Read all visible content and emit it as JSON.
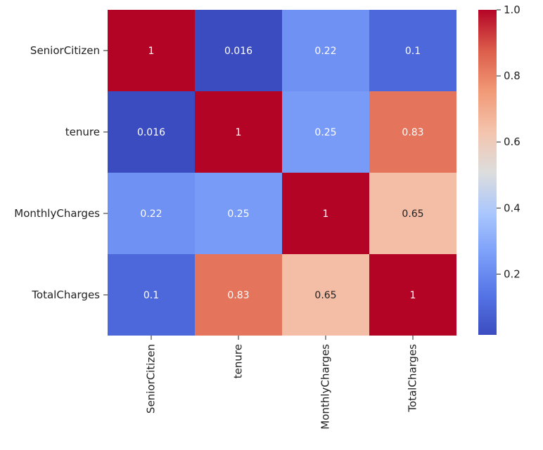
{
  "chart_data": {
    "type": "heatmap",
    "title": "",
    "xlabel": "",
    "ylabel": "",
    "row_labels": [
      "SeniorCitizen",
      "tenure",
      "MonthlyCharges",
      "TotalCharges"
    ],
    "column_labels": [
      "SeniorCitizen",
      "tenure",
      "MonthlyCharges",
      "TotalCharges"
    ],
    "values": [
      [
        1,
        0.016,
        0.22,
        0.1
      ],
      [
        0.016,
        1,
        0.25,
        0.83
      ],
      [
        0.22,
        0.25,
        1,
        0.65
      ],
      [
        0.1,
        0.83,
        0.65,
        1
      ]
    ],
    "cell_labels": [
      [
        "1",
        "0.016",
        "0.22",
        "0.1"
      ],
      [
        "0.016",
        "1",
        "0.25",
        "0.83"
      ],
      [
        "0.22",
        "0.25",
        "1",
        "0.65"
      ],
      [
        "0.1",
        "0.83",
        "0.65",
        "1"
      ]
    ],
    "colorbar": {
      "min": 0.016,
      "max": 1.0,
      "ticks": [
        0.2,
        0.4,
        0.6,
        0.8,
        1.0
      ],
      "tick_labels": [
        "0.2",
        "0.4",
        "0.6",
        "0.8",
        "1.0"
      ]
    },
    "colormap": "coolwarm",
    "colors": {
      "low": "#3b4cc0",
      "mid": "#dddddd",
      "high": "#b40426",
      "axis": "#222222",
      "annotation_light": "#ffffff",
      "annotation_dark": "#222222"
    }
  }
}
